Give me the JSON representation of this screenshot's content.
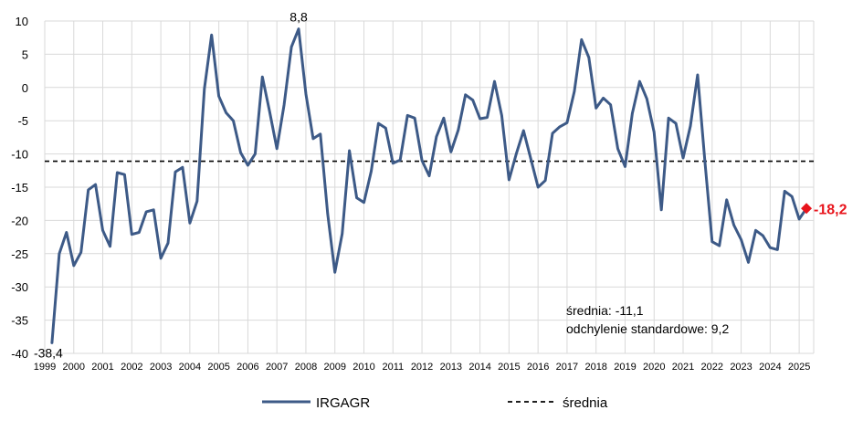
{
  "chart_data": {
    "type": "line",
    "title": "",
    "xlabel": "",
    "ylabel": "",
    "ylim": [
      -40,
      10
    ],
    "xlim": [
      1999,
      2025.5
    ],
    "y_ticks": [
      "10",
      "5",
      "0",
      "-5",
      "-10",
      "-15",
      "-20",
      "-25",
      "-30",
      "-35",
      "-40"
    ],
    "x_ticks": [
      "1999",
      "2000",
      "2001",
      "2002",
      "2003",
      "2004",
      "2005",
      "2006",
      "2007",
      "2008",
      "2009",
      "2010",
      "2011",
      "2012",
      "2013",
      "2014",
      "2015",
      "2016",
      "2017",
      "2018",
      "2019",
      "2020",
      "2021",
      "2022",
      "2023",
      "2024",
      "2025"
    ],
    "grid": true,
    "series": [
      {
        "name": "IRGAGR",
        "color": "#3d5a87",
        "points": [
          [
            1999.25,
            -38.4
          ],
          [
            1999.5,
            -25.0
          ],
          [
            1999.75,
            -21.8
          ],
          [
            2000.0,
            -26.8
          ],
          [
            2000.25,
            -24.8
          ],
          [
            2000.5,
            -15.4
          ],
          [
            2000.75,
            -14.6
          ],
          [
            2001.0,
            -21.5
          ],
          [
            2001.25,
            -23.9
          ],
          [
            2001.5,
            -12.8
          ],
          [
            2001.75,
            -13.1
          ],
          [
            2002.0,
            -22.1
          ],
          [
            2002.25,
            -21.8
          ],
          [
            2002.5,
            -18.7
          ],
          [
            2002.75,
            -18.4
          ],
          [
            2003.0,
            -25.7
          ],
          [
            2003.25,
            -23.4
          ],
          [
            2003.5,
            -12.7
          ],
          [
            2003.75,
            -12.0
          ],
          [
            2004.0,
            -20.4
          ],
          [
            2004.25,
            -17.1
          ],
          [
            2004.5,
            -0.2
          ],
          [
            2004.75,
            7.9
          ],
          [
            2005.0,
            -1.3
          ],
          [
            2005.25,
            -3.8
          ],
          [
            2005.5,
            -5.0
          ],
          [
            2005.75,
            -9.8
          ],
          [
            2006.0,
            -11.7
          ],
          [
            2006.25,
            -10.0
          ],
          [
            2006.5,
            1.6
          ],
          [
            2006.75,
            -3.6
          ],
          [
            2007.0,
            -9.2
          ],
          [
            2007.25,
            -2.6
          ],
          [
            2007.5,
            6.1
          ],
          [
            2007.75,
            8.8
          ],
          [
            2008.0,
            -1.0
          ],
          [
            2008.25,
            -7.7
          ],
          [
            2008.5,
            -7.0
          ],
          [
            2008.75,
            -19.0
          ],
          [
            2009.0,
            -27.8
          ],
          [
            2009.25,
            -22.0
          ],
          [
            2009.5,
            -9.5
          ],
          [
            2009.75,
            -16.6
          ],
          [
            2010.0,
            -17.3
          ],
          [
            2010.25,
            -12.6
          ],
          [
            2010.5,
            -5.4
          ],
          [
            2010.75,
            -6.1
          ],
          [
            2011.0,
            -11.4
          ],
          [
            2011.25,
            -10.9
          ],
          [
            2011.5,
            -4.2
          ],
          [
            2011.75,
            -4.6
          ],
          [
            2012.0,
            -11.0
          ],
          [
            2012.25,
            -13.3
          ],
          [
            2012.5,
            -7.4
          ],
          [
            2012.75,
            -4.6
          ],
          [
            2013.0,
            -9.7
          ],
          [
            2013.25,
            -6.4
          ],
          [
            2013.5,
            -1.1
          ],
          [
            2013.75,
            -1.9
          ],
          [
            2014.0,
            -4.7
          ],
          [
            2014.25,
            -4.5
          ],
          [
            2014.5,
            0.9
          ],
          [
            2014.75,
            -4.2
          ],
          [
            2015.0,
            -13.9
          ],
          [
            2015.25,
            -10.0
          ],
          [
            2015.5,
            -6.5
          ],
          [
            2015.75,
            -10.7
          ],
          [
            2016.0,
            -15.0
          ],
          [
            2016.25,
            -14.0
          ],
          [
            2016.5,
            -6.9
          ],
          [
            2016.75,
            -5.9
          ],
          [
            2017.0,
            -5.3
          ],
          [
            2017.25,
            -0.6
          ],
          [
            2017.5,
            7.2
          ],
          [
            2017.75,
            4.5
          ],
          [
            2018.0,
            -3.1
          ],
          [
            2018.25,
            -1.6
          ],
          [
            2018.5,
            -2.6
          ],
          [
            2018.75,
            -9.2
          ],
          [
            2019.0,
            -11.9
          ],
          [
            2019.25,
            -3.9
          ],
          [
            2019.5,
            0.9
          ],
          [
            2019.75,
            -1.7
          ],
          [
            2020.0,
            -6.7
          ],
          [
            2020.25,
            -18.4
          ],
          [
            2020.5,
            -4.6
          ],
          [
            2020.75,
            -5.4
          ],
          [
            2021.0,
            -10.6
          ],
          [
            2021.25,
            -5.8
          ],
          [
            2021.5,
            1.9
          ],
          [
            2021.75,
            -11.0
          ],
          [
            2022.0,
            -23.2
          ],
          [
            2022.25,
            -23.8
          ],
          [
            2022.5,
            -16.9
          ],
          [
            2022.75,
            -20.7
          ],
          [
            2023.0,
            -22.9
          ],
          [
            2023.25,
            -26.3
          ],
          [
            2023.5,
            -21.5
          ],
          [
            2023.75,
            -22.3
          ],
          [
            2024.0,
            -24.1
          ],
          [
            2024.25,
            -24.4
          ],
          [
            2024.5,
            -15.6
          ],
          [
            2024.75,
            -16.4
          ],
          [
            2025.0,
            -19.8
          ],
          [
            2025.25,
            -18.2
          ]
        ]
      },
      {
        "name": "średnia",
        "color": "#000000",
        "dashed": true,
        "value": -11.1
      }
    ],
    "annotations": {
      "min_label": "-38,4",
      "max_label": "8,8",
      "last_label": "-18,2",
      "last_color": "#e8141c",
      "mean_text": "średnia: -11,1",
      "std_text": "odchylenie standardowe: 9,2"
    },
    "legend": {
      "position": "bottom",
      "items": [
        "IRGAGR",
        "średnia"
      ]
    }
  }
}
